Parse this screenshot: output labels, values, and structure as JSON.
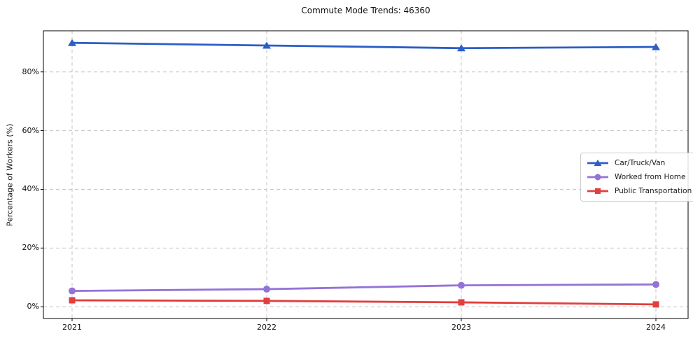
{
  "figure": {
    "title": "Commute Mode Trends: 46360"
  },
  "chart_data": {
    "type": "line",
    "title": "Commute Mode Trends: 46360",
    "xlabel": "",
    "ylabel": "Percentage of Workers (%)",
    "categories": [
      "2021",
      "2022",
      "2023",
      "2024"
    ],
    "series": [
      {
        "name": "Car/Truck/Van",
        "marker": "triangle",
        "color": "#2b5ec6",
        "values": [
          89.9,
          89.0,
          88.1,
          88.5
        ]
      },
      {
        "name": "Worked from Home",
        "marker": "circle",
        "color": "#9473d6",
        "values": [
          5.4,
          6.0,
          7.3,
          7.6
        ]
      },
      {
        "name": "Public Transportation",
        "marker": "square",
        "color": "#e23e3e",
        "values": [
          2.2,
          2.0,
          1.5,
          0.8
        ]
      }
    ],
    "ytick_labels": [
      "0%",
      "20%",
      "40%",
      "60%",
      "80%"
    ],
    "ytick_values": [
      0,
      20,
      40,
      60,
      80
    ],
    "ylim": [
      -4,
      94
    ],
    "grid": true,
    "grid_color": "#c4c4c4",
    "line_width": 2.8,
    "legend_position": "center-right"
  }
}
